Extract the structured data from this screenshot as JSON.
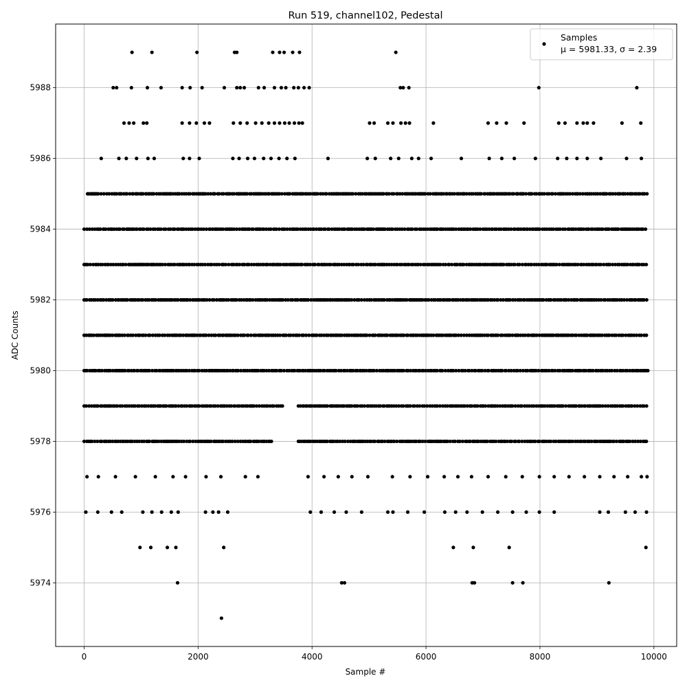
{
  "chart_data": {
    "type": "scatter",
    "title": "Run 519, channel102, Pedestal",
    "xlabel": "Sample #",
    "ylabel": "ADC Counts",
    "xlim": [
      -500,
      10400
    ],
    "ylim": [
      5972.2,
      5989.8
    ],
    "x_ticks": [
      0,
      2000,
      4000,
      6000,
      8000,
      10000
    ],
    "x_tick_labels": [
      "0",
      "2000",
      "4000",
      "6000",
      "8000",
      "10000"
    ],
    "y_ticks": [
      5974,
      5976,
      5978,
      5980,
      5982,
      5984,
      5986,
      5988
    ],
    "y_tick_labels": [
      "5974",
      "5976",
      "5978",
      "5980",
      "5982",
      "5984",
      "5986",
      "5988"
    ],
    "grid": true,
    "legend_position": "top-right",
    "legend": {
      "label": "Samples",
      "stats": "μ = 5981.33, σ = 2.39"
    },
    "series": [
      {
        "name": "Samples",
        "color": "#000000",
        "points": [
          [
            2410,
            5973
          ],
          [
            1640,
            5974
          ],
          [
            4520,
            5974
          ],
          [
            4570,
            5974
          ],
          [
            6810,
            5974
          ],
          [
            6850,
            5974
          ],
          [
            7520,
            5974
          ],
          [
            7700,
            5974
          ],
          [
            9210,
            5974
          ],
          [
            980,
            5975
          ],
          [
            1170,
            5975
          ],
          [
            1460,
            5975
          ],
          [
            1610,
            5975
          ],
          [
            2450,
            5975
          ],
          [
            6480,
            5975
          ],
          [
            6830,
            5975
          ],
          [
            7460,
            5975
          ],
          [
            9860,
            5975
          ],
          [
            840,
            5989
          ],
          [
            1190,
            5989
          ],
          [
            1980,
            5989
          ],
          [
            2640,
            5989
          ],
          [
            2680,
            5989
          ],
          [
            3310,
            5989
          ],
          [
            3430,
            5989
          ],
          [
            3510,
            5989
          ],
          [
            3660,
            5989
          ],
          [
            3780,
            5989
          ],
          [
            5470,
            5989
          ],
          [
            510,
            5988
          ],
          [
            570,
            5988
          ],
          [
            830,
            5988
          ],
          [
            1110,
            5988
          ],
          [
            1350,
            5988
          ],
          [
            1720,
            5988
          ],
          [
            1860,
            5988
          ],
          [
            2070,
            5988
          ],
          [
            2460,
            5988
          ],
          [
            2680,
            5988
          ],
          [
            2740,
            5988
          ],
          [
            2810,
            5988
          ],
          [
            3060,
            5988
          ],
          [
            3160,
            5988
          ],
          [
            3340,
            5988
          ],
          [
            3460,
            5988
          ],
          [
            3540,
            5988
          ],
          [
            3680,
            5988
          ],
          [
            3760,
            5988
          ],
          [
            3860,
            5988
          ],
          [
            3950,
            5988
          ],
          [
            5550,
            5988
          ],
          [
            5600,
            5988
          ],
          [
            5700,
            5988
          ],
          [
            7980,
            5988
          ],
          [
            9700,
            5988
          ],
          [
            300,
            5986
          ],
          [
            610,
            5986
          ],
          [
            740,
            5986
          ],
          [
            920,
            5986
          ],
          [
            1120,
            5986
          ],
          [
            1230,
            5986
          ],
          [
            1740,
            5986
          ],
          [
            1850,
            5986
          ],
          [
            2020,
            5986
          ],
          [
            2610,
            5986
          ],
          [
            2720,
            5986
          ],
          [
            2870,
            5986
          ],
          [
            2990,
            5986
          ],
          [
            3150,
            5986
          ],
          [
            3280,
            5986
          ],
          [
            3420,
            5986
          ],
          [
            3560,
            5986
          ],
          [
            3700,
            5986
          ],
          [
            4280,
            5986
          ],
          [
            4970,
            5986
          ],
          [
            5110,
            5986
          ],
          [
            5380,
            5986
          ],
          [
            5520,
            5986
          ],
          [
            5750,
            5986
          ],
          [
            5870,
            5986
          ],
          [
            6090,
            5986
          ],
          [
            6620,
            5986
          ],
          [
            7110,
            5986
          ],
          [
            7330,
            5986
          ],
          [
            7550,
            5986
          ],
          [
            7920,
            5986
          ],
          [
            8310,
            5986
          ],
          [
            8470,
            5986
          ],
          [
            8650,
            5986
          ],
          [
            8830,
            5986
          ],
          [
            9070,
            5986
          ],
          [
            9520,
            5986
          ],
          [
            9780,
            5986
          ],
          [
            700,
            5987
          ],
          [
            790,
            5987
          ],
          [
            870,
            5987
          ],
          [
            1040,
            5987
          ],
          [
            1100,
            5987
          ],
          [
            1720,
            5987
          ],
          [
            1850,
            5987
          ],
          [
            1970,
            5987
          ],
          [
            2110,
            5987
          ],
          [
            2200,
            5987
          ],
          [
            2620,
            5987
          ],
          [
            2740,
            5987
          ],
          [
            2860,
            5987
          ],
          [
            3010,
            5987
          ],
          [
            3120,
            5987
          ],
          [
            3240,
            5987
          ],
          [
            3340,
            5987
          ],
          [
            3430,
            5987
          ],
          [
            3520,
            5987
          ],
          [
            3600,
            5987
          ],
          [
            3690,
            5987
          ],
          [
            3770,
            5987
          ],
          [
            3830,
            5987
          ],
          [
            5010,
            5987
          ],
          [
            5090,
            5987
          ],
          [
            5330,
            5987
          ],
          [
            5420,
            5987
          ],
          [
            5560,
            5987
          ],
          [
            5640,
            5987
          ],
          [
            5710,
            5987
          ],
          [
            6130,
            5987
          ],
          [
            7090,
            5987
          ],
          [
            7240,
            5987
          ],
          [
            7410,
            5987
          ],
          [
            7720,
            5987
          ],
          [
            8330,
            5987
          ],
          [
            8440,
            5987
          ],
          [
            8650,
            5987
          ],
          [
            8760,
            5987
          ],
          [
            8830,
            5987
          ],
          [
            8940,
            5987
          ],
          [
            9440,
            5987
          ],
          [
            9770,
            5987
          ],
          [
            30,
            5976
          ],
          [
            240,
            5976
          ],
          [
            480,
            5976
          ],
          [
            660,
            5976
          ],
          [
            1030,
            5976
          ],
          [
            1190,
            5976
          ],
          [
            1360,
            5976
          ],
          [
            1530,
            5976
          ],
          [
            1650,
            5976
          ],
          [
            2130,
            5976
          ],
          [
            2260,
            5976
          ],
          [
            2360,
            5976
          ],
          [
            2520,
            5976
          ],
          [
            3970,
            5976
          ],
          [
            4160,
            5976
          ],
          [
            4390,
            5976
          ],
          [
            4600,
            5976
          ],
          [
            4870,
            5976
          ],
          [
            5330,
            5976
          ],
          [
            5420,
            5976
          ],
          [
            5680,
            5976
          ],
          [
            5970,
            5976
          ],
          [
            6330,
            5976
          ],
          [
            6520,
            5976
          ],
          [
            6720,
            5976
          ],
          [
            6990,
            5976
          ],
          [
            7260,
            5976
          ],
          [
            7520,
            5976
          ],
          [
            7760,
            5976
          ],
          [
            7990,
            5976
          ],
          [
            8250,
            5976
          ],
          [
            9050,
            5976
          ],
          [
            9200,
            5976
          ],
          [
            9500,
            5976
          ],
          [
            9670,
            5976
          ],
          [
            9870,
            5976
          ],
          [
            50,
            5977
          ],
          [
            250,
            5977
          ],
          [
            550,
            5977
          ],
          [
            900,
            5977
          ],
          [
            1250,
            5977
          ],
          [
            1560,
            5977
          ],
          [
            1780,
            5977
          ],
          [
            2140,
            5977
          ],
          [
            2400,
            5977
          ],
          [
            2830,
            5977
          ],
          [
            3050,
            5977
          ],
          [
            3930,
            5977
          ],
          [
            4210,
            5977
          ],
          [
            4460,
            5977
          ],
          [
            4700,
            5977
          ],
          [
            4980,
            5977
          ],
          [
            5410,
            5977
          ],
          [
            5720,
            5977
          ],
          [
            6030,
            5977
          ],
          [
            6320,
            5977
          ],
          [
            6560,
            5977
          ],
          [
            6800,
            5977
          ],
          [
            7090,
            5977
          ],
          [
            7400,
            5977
          ],
          [
            7690,
            5977
          ],
          [
            7990,
            5977
          ],
          [
            8250,
            5977
          ],
          [
            8510,
            5977
          ],
          [
            8780,
            5977
          ],
          [
            9050,
            5977
          ],
          [
            9300,
            5977
          ],
          [
            9540,
            5977
          ],
          [
            9780,
            5977
          ],
          [
            9880,
            5977
          ]
        ],
        "dense_levels": [
          {
            "y": 5978,
            "ranges": [
              [
                0,
                3300
              ],
              [
                3760,
                9900
              ]
            ]
          },
          {
            "y": 5979,
            "ranges": [
              [
                0,
                3500
              ],
              [
                3760,
                9900
              ]
            ]
          },
          {
            "y": 5980,
            "ranges": [
              [
                0,
                9900
              ]
            ]
          },
          {
            "y": 5981,
            "ranges": [
              [
                0,
                9900
              ]
            ]
          },
          {
            "y": 5982,
            "ranges": [
              [
                0,
                9900
              ]
            ]
          },
          {
            "y": 5983,
            "ranges": [
              [
                0,
                9900
              ]
            ]
          },
          {
            "y": 5984,
            "ranges": [
              [
                0,
                9900
              ]
            ]
          },
          {
            "y": 5985,
            "ranges": [
              [
                60,
                9900
              ]
            ]
          }
        ]
      }
    ]
  }
}
